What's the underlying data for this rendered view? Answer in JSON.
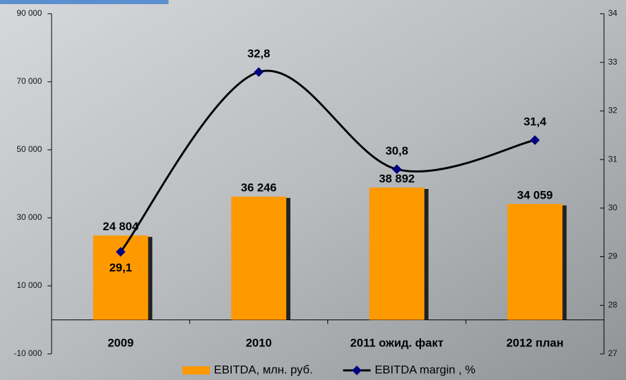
{
  "chart_data": {
    "type": "bar-line",
    "categories": [
      "2009",
      "2010",
      "2011 ожид. факт",
      "2012 план"
    ],
    "series": [
      {
        "name": "EBITDA, млн. руб.",
        "type": "bar",
        "color": "#ff9900",
        "axis": "y",
        "values": [
          24804,
          36246,
          38892,
          34059
        ],
        "value_labels": [
          "24 804",
          "36 246",
          "38 892",
          "34 059"
        ]
      },
      {
        "name": "EBITDA margin , %",
        "type": "line",
        "color": "#000000",
        "marker_color": "#000080",
        "axis": "y2",
        "values": [
          29.1,
          32.8,
          30.8,
          31.4
        ],
        "value_labels": [
          "29,1",
          "32,8",
          "30,8",
          "31,4"
        ]
      }
    ],
    "ylim": [
      -10000,
      90000
    ],
    "yticks": [
      {
        "value": 90000,
        "label": "90 000"
      },
      {
        "value": 70000,
        "label": "70 000"
      },
      {
        "value": 50000,
        "label": "50 000"
      },
      {
        "value": 30000,
        "label": "30 000"
      },
      {
        "value": 10000,
        "label": "10 000"
      },
      {
        "value": -10000,
        "label": "-10 000"
      }
    ],
    "y2lim": [
      27,
      34
    ],
    "y2ticks": [
      27,
      28,
      29,
      30,
      31,
      32,
      33,
      34
    ],
    "legend": "bottom"
  }
}
